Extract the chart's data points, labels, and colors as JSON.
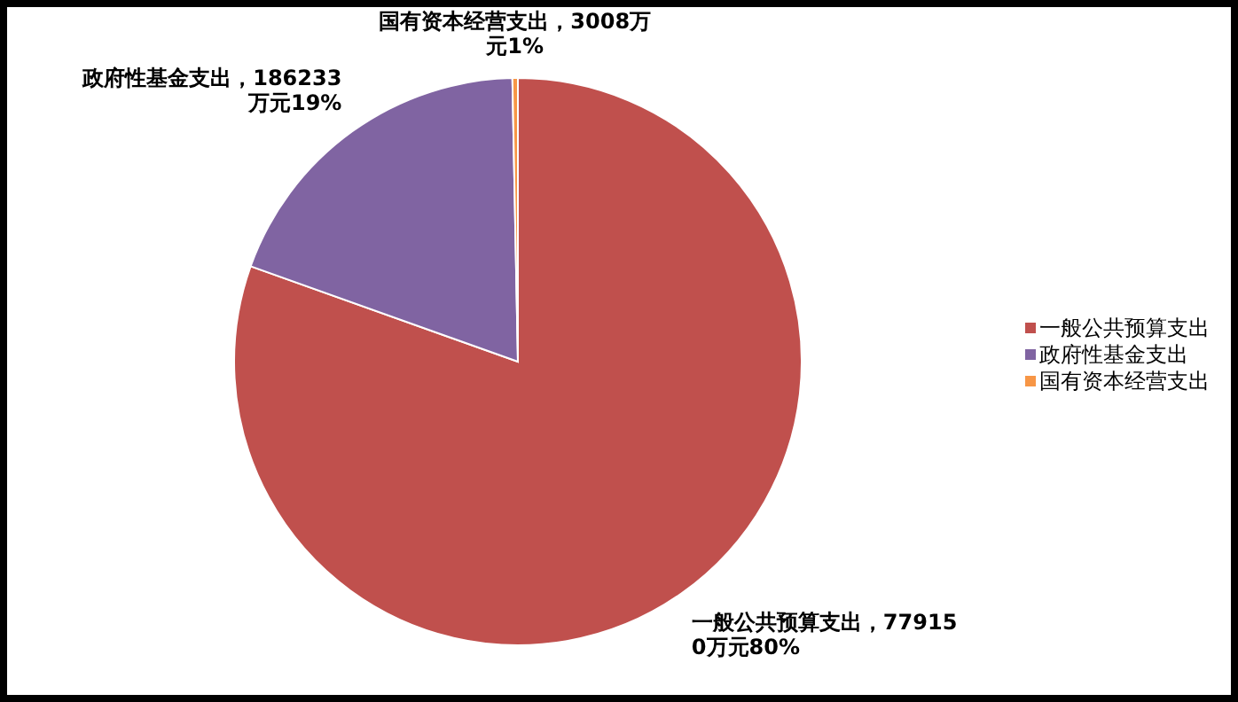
{
  "chart_data": {
    "type": "pie",
    "categories": [
      "一般公共预算支出",
      "政府性基金支出",
      "国有资本经营支出"
    ],
    "values": [
      779150,
      186233,
      3008
    ],
    "colors": [
      "#c0504d",
      "#8064a2",
      "#f79646"
    ],
    "value_labels": [
      "一般公共预算支出，779150万元80%",
      "政府性基金支出，186233万元19%",
      "国有资本经营支出，3008万元1%"
    ],
    "legend": "right"
  }
}
